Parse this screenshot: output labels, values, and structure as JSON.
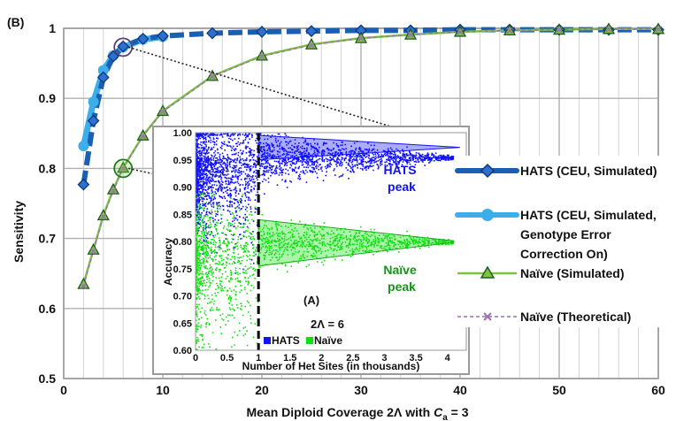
{
  "chart_data": [
    {
      "type": "line",
      "panel_label": "(B)",
      "xlabel": "Mean Diploid Coverage 2Λ with",
      "xlabel_var": "C",
      "xlabel_sub": "a",
      "xlabel_tail": " = 3",
      "ylabel": "Sensitivity",
      "xlim": [
        0,
        60
      ],
      "ylim": [
        0.5,
        1.0
      ],
      "x_ticks": [
        "0",
        "10",
        "20",
        "30",
        "40",
        "50",
        "60"
      ],
      "y_ticks": [
        "0.5",
        "0.6",
        "0.7",
        "0.8",
        "0.9",
        "1"
      ],
      "grid": true,
      "legend_position": "right",
      "series": [
        {
          "name": "HATS (CEU, Simulated)",
          "color": "#1a5fb4",
          "marker": "diamond",
          "x": [
            2,
            3,
            4,
            5,
            6,
            8,
            10,
            15,
            20,
            25,
            30,
            35,
            40,
            45,
            50,
            55,
            60
          ],
          "y": [
            0.777,
            0.868,
            0.93,
            0.96,
            0.974,
            0.985,
            0.989,
            0.993,
            0.995,
            0.996,
            0.997,
            0.997,
            0.998,
            0.998,
            0.998,
            0.998,
            0.998
          ]
        },
        {
          "name_lines": [
            "HATS (CEU, Simulated,",
            "Genotype Error",
            "Correction On)"
          ],
          "name": "HATS (CEU, Simulated, Genotype Error Correction On)",
          "color": "#3daee9",
          "marker": "circle",
          "x": [
            2,
            3,
            4,
            5,
            6,
            8,
            10
          ],
          "y": [
            0.832,
            0.895,
            0.94,
            0.961,
            0.973,
            0.984,
            0.988
          ]
        },
        {
          "name": "Naïve (Simulated)",
          "color": "#7dc242",
          "marker": "triangle",
          "x": [
            2,
            3,
            4,
            5,
            6,
            8,
            10,
            15,
            20,
            25,
            30,
            35,
            40,
            45,
            50,
            55,
            60
          ],
          "y": [
            0.635,
            0.684,
            0.733,
            0.77,
            0.801,
            0.847,
            0.882,
            0.932,
            0.961,
            0.977,
            0.986,
            0.991,
            0.995,
            0.997,
            0.998,
            0.999,
            0.999
          ]
        },
        {
          "name": "Naïve (Theoretical)",
          "color": "#9b6fb0",
          "marker": "x",
          "x": [
            2,
            3,
            4,
            5,
            6,
            8,
            10,
            15,
            20,
            25,
            30,
            35,
            40,
            45,
            50,
            55,
            60
          ],
          "y": [
            0.632,
            0.682,
            0.731,
            0.768,
            0.8,
            0.846,
            0.881,
            0.931,
            0.96,
            0.976,
            0.986,
            0.991,
            0.995,
            0.997,
            0.998,
            0.999,
            0.999
          ]
        }
      ],
      "highlights": [
        {
          "x": 6,
          "y": 0.973,
          "series": "HATS"
        },
        {
          "x": 6,
          "y": 0.8,
          "series": "Naïve"
        }
      ]
    },
    {
      "type": "scatter",
      "panel_label": "(A)",
      "annotation": "2Λ = 6",
      "xlabel": "Number of Het Sites (in thousands)",
      "ylabel": "Accuracy",
      "xlim": [
        0,
        4.3
      ],
      "ylim": [
        0.6,
        1.0
      ],
      "x_ticks": [
        "0",
        "0.5",
        "1",
        "1.5",
        "2",
        "2.5",
        "3",
        "3.5",
        "4"
      ],
      "y_ticks": [
        "0.60",
        "0.65",
        "0.70",
        "0.75",
        "0.80",
        "0.85",
        "0.90",
        "0.95",
        "1.00"
      ],
      "threshold_x": 1.0,
      "legend": [
        "HATS",
        "Naïve"
      ],
      "legend_colors": [
        "#1010ff",
        "#10e010"
      ],
      "peak_labels": [
        {
          "lines": [
            "HATS",
            "peak"
          ],
          "color": "#1010ff"
        },
        {
          "lines": [
            "Naïve",
            "peak"
          ],
          "color": "#149414"
        }
      ],
      "peaks": [
        {
          "x": 4.2,
          "y": 0.973
        },
        {
          "x": 4.2,
          "y": 0.8
        }
      ]
    }
  ]
}
